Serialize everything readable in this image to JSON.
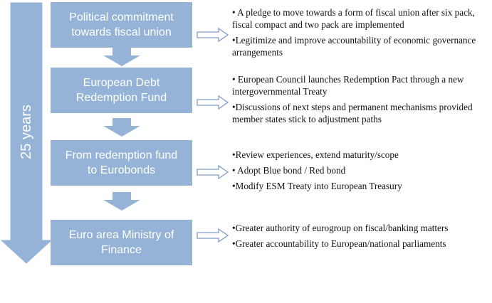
{
  "timeline": {
    "label": "25 years"
  },
  "colors": {
    "box_fill": "#95b3d7",
    "box_text": "#ffffff",
    "timeline_arrow": "#95b3d7",
    "connector_stroke": "#7f9cc5"
  },
  "stages": [
    {
      "title": "Political commitment\ntowards fiscal union",
      "bullets": [
        "• A pledge to move towards a form of fiscal union after six pack, fiscal compact and two pack are implemented",
        "•Legitimize and improve accountability of economic governance arrangements"
      ]
    },
    {
      "title": "European Debt\nRedemption Fund",
      "bullets": [
        "• European Council launches Redemption Pact through a new intergovernmental Treaty",
        "•Discussions of next steps and permanent mechanisms provided member states stick to adjustment paths"
      ]
    },
    {
      "title": "From redemption fund\nto Eurobonds",
      "bullets": [
        "•Review experiences, extend maturity/scope",
        "• Adopt Blue bond / Red bond",
        "•Modify ESM Treaty into European Treasury"
      ]
    },
    {
      "title": "Euro area Ministry of\nFinance",
      "bullets": [
        "•Greater authority of eurogroup on fiscal/banking matters",
        "•Greater accountability to European/national parliaments"
      ]
    }
  ]
}
